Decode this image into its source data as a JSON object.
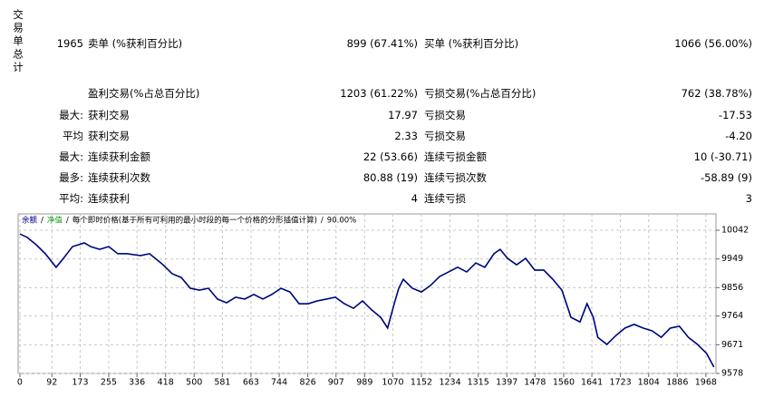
{
  "side_label": "交易单总计",
  "table": {
    "rows": [
      [
        "1965",
        "卖单 (%获利百分比)",
        "899 (67.41%)",
        "买单 (%获利百分比)",
        "1066 (56.00%)"
      ],
      [
        null,
        "盈利交易(%占总百分比)",
        "1203 (61.22%)",
        "亏损交易(%占总百分比)",
        "762 (38.78%)"
      ],
      [
        "最大:",
        "获利交易",
        "17.97",
        "亏损交易",
        "-17.53"
      ],
      [
        "平均",
        "获利交易",
        "2.33",
        "亏损交易",
        "-4.20"
      ],
      [
        "最大:",
        "连续获利金额",
        "22 (53.66)",
        "连续亏损金额",
        "10 (-30.71)"
      ],
      [
        "最多:",
        "连续获利次数",
        "80.88 (19)",
        "连续亏损次数",
        "-58.89 (9)"
      ],
      [
        "平均:",
        "连续获利",
        "4",
        "连续亏损",
        "3"
      ]
    ]
  },
  "chart_data": {
    "type": "line",
    "legend_separator": "/",
    "legend_note": "每个即时价格(基于所有可利用的最小时段的每一个价格的分形插值计算)",
    "legend_quality": "90.00%",
    "x": [
      0,
      21,
      47,
      73,
      104,
      125,
      151,
      185,
      203,
      229,
      255,
      281,
      307,
      346,
      372,
      411,
      437,
      463,
      489,
      515,
      541,
      567,
      593,
      619,
      645,
      671,
      697,
      723,
      749,
      775,
      801,
      827,
      853,
      879,
      905,
      931,
      957,
      983,
      1009,
      1035,
      1055,
      1074,
      1087,
      1100,
      1126,
      1152,
      1178,
      1204,
      1230,
      1256,
      1282,
      1308,
      1334,
      1360,
      1378,
      1399,
      1425,
      1451,
      1477,
      1503,
      1529,
      1555,
      1581,
      1607,
      1627,
      1645,
      1658,
      1684,
      1710,
      1736,
      1762,
      1788,
      1814,
      1840,
      1866,
      1892,
      1918,
      1944,
      1970,
      1991
    ],
    "series": [
      {
        "name": "净值",
        "color": "#1a9a1a",
        "values": [
          10030,
          10019,
          9995,
          9966,
          9922,
          9951,
          9989,
          10001,
          9989,
          9980,
          9989,
          9966,
          9966,
          9960,
          9966,
          9930,
          9901,
          9889,
          9854,
          9848,
          9854,
          9819,
          9807,
          9825,
          9819,
          9834,
          9819,
          9834,
          9854,
          9842,
          9804,
          9804,
          9813,
          9819,
          9825,
          9804,
          9789,
          9813,
          9784,
          9760,
          9725,
          9804,
          9854,
          9883,
          9854,
          9842,
          9863,
          9892,
          9907,
          9922,
          9907,
          9936,
          9922,
          9966,
          9980,
          9951,
          9930,
          9951,
          9913,
          9913,
          9883,
          9848,
          9760,
          9745,
          9804,
          9760,
          9695,
          9672,
          9701,
          9725,
          9737,
          9725,
          9716,
          9695,
          9725,
          9731,
          9695,
          9672,
          9643,
          9599
        ]
      },
      {
        "name": "余额",
        "color": "#00008b",
        "values": [
          10030,
          10019,
          9995,
          9966,
          9922,
          9951,
          9989,
          10001,
          9989,
          9980,
          9989,
          9966,
          9966,
          9960,
          9966,
          9930,
          9901,
          9889,
          9854,
          9848,
          9854,
          9819,
          9807,
          9825,
          9819,
          9834,
          9819,
          9834,
          9854,
          9842,
          9804,
          9804,
          9813,
          9819,
          9825,
          9804,
          9789,
          9813,
          9784,
          9760,
          9725,
          9804,
          9854,
          9883,
          9854,
          9842,
          9863,
          9892,
          9907,
          9922,
          9907,
          9936,
          9922,
          9966,
          9980,
          9951,
          9930,
          9951,
          9913,
          9913,
          9883,
          9848,
          9760,
          9745,
          9804,
          9760,
          9695,
          9672,
          9701,
          9725,
          9737,
          9725,
          9716,
          9695,
          9725,
          9731,
          9695,
          9672,
          9643,
          9599
        ]
      }
    ],
    "xlim": [
      -5,
      1997
    ],
    "xticks": [
      0,
      92,
      173,
      255,
      336,
      418,
      500,
      581,
      663,
      744,
      826,
      907,
      989,
      1070,
      1152,
      1234,
      1315,
      1397,
      1478,
      1560,
      1641,
      1723,
      1804,
      1886,
      1968
    ],
    "ylim": [
      9578,
      10095
    ],
    "yticks": [
      9578,
      9671,
      9764,
      9856,
      9949,
      10042
    ],
    "grid": true
  }
}
